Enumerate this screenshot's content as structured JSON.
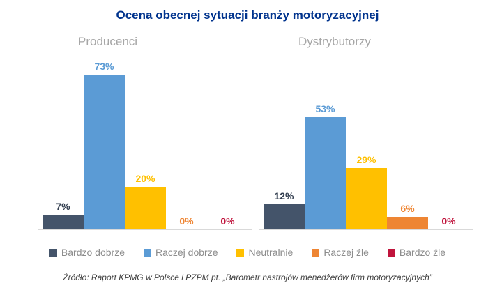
{
  "chart_data": {
    "type": "bar",
    "title": "Ocena obecnej sytuacji branży motoryzacyjnej",
    "categories": [
      "Bardzo dobrze",
      "Raczej dobrze",
      "Neutralnie",
      "Raczej źle",
      "Bardzo źle"
    ],
    "groups": [
      {
        "label": "Producenci",
        "values": [
          7,
          73,
          20,
          0,
          0
        ]
      },
      {
        "label": "Dystrybutorzy",
        "values": [
          12,
          53,
          29,
          6,
          0
        ]
      }
    ],
    "value_suffix": "%",
    "ylim": [
      0,
      80
    ],
    "grid": false,
    "legend_position": "bottom",
    "series_colors": [
      "#44546A",
      "#5B9BD5",
      "#FFC000",
      "#EE8533",
      "#C0143C"
    ],
    "value_label_colors": [
      "#333F50",
      "#5B9BD5",
      "#FFC000",
      "#EE8533",
      "#C0143C"
    ],
    "title_color": "#00338D",
    "group_label_color": "#A6A6A6",
    "legend_text_color": "#8C8C8C",
    "axis_line_color": "#D9D9D9"
  },
  "source": "Źródło: Raport KPMG w Polsce i PZPM pt. „Barometr nastrojów menedżerów firm motoryzacyjnych”"
}
